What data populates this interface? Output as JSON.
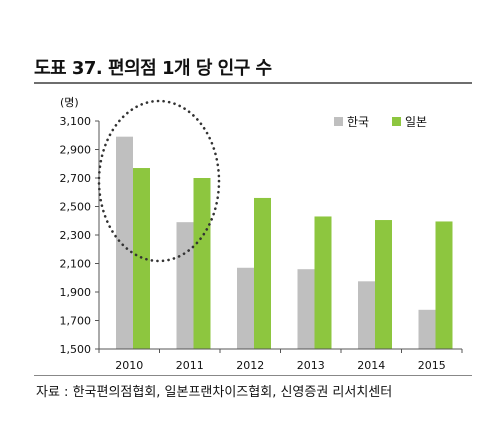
{
  "title": "도표 37. 편의점 1개 당 인구 수",
  "source": "자료 : 한국편의점협회, 일본프랜차이즈협회, 신영증권 리서치센터",
  "chart_data": {
    "type": "bar",
    "ylabel": "(명)",
    "categories": [
      "2010",
      "2011",
      "2012",
      "2013",
      "2014",
      "2015"
    ],
    "series": [
      {
        "name": "한국",
        "color": "#bfbfbf",
        "values": [
          2990,
          2390,
          2070,
          2060,
          1975,
          1775
        ]
      },
      {
        "name": "일본",
        "color": "#8dc63f",
        "values": [
          2770,
          2700,
          2560,
          2430,
          2405,
          2395
        ]
      }
    ],
    "ylim": [
      1500,
      3100
    ],
    "yticks": [
      "1,500",
      "1,700",
      "1,900",
      "2,100",
      "2,300",
      "2,500",
      "2,700",
      "2,900",
      "3,100"
    ],
    "legend_position": "top-right",
    "annotation": "dotted ellipse highlighting 2010-2011"
  }
}
